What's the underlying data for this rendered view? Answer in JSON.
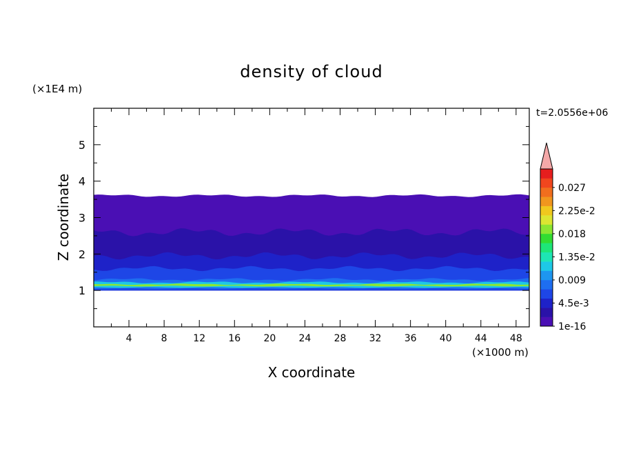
{
  "chart_data": {
    "type": "heatmap",
    "title": "density of cloud",
    "xlabel": "X coordinate",
    "ylabel": "Z coordinate",
    "x_unit": "(×1000 m)",
    "y_unit": "(×1E4 m)",
    "time_label": "t=2.0556e+06",
    "xlim": [
      0,
      49.5
    ],
    "ylim": [
      0,
      6
    ],
    "x_ticks": [
      "4",
      "8",
      "12",
      "16",
      "20",
      "24",
      "28",
      "32",
      "36",
      "40",
      "44",
      "48"
    ],
    "x_tick_values": [
      4,
      8,
      12,
      16,
      20,
      24,
      28,
      32,
      36,
      40,
      44,
      48
    ],
    "y_ticks": [
      "1",
      "2",
      "3",
      "4",
      "5"
    ],
    "y_tick_values": [
      1,
      2,
      3,
      4,
      5
    ],
    "colorbar": {
      "labels": [
        "1e-16",
        "4.5e-3",
        "0.009",
        "1.35e-2",
        "0.018",
        "2.25e-2",
        "0.027"
      ],
      "label_values": [
        0,
        0.0045,
        0.009,
        0.0135,
        0.018,
        0.0225,
        0.027
      ],
      "colors": [
        "#4a0fb4",
        "#2a12a8",
        "#1e22c8",
        "#1e46e6",
        "#1e6ef0",
        "#1e96f0",
        "#1ec8e6",
        "#1ee6b4",
        "#1ee678",
        "#32dc32",
        "#8ce632",
        "#dce632",
        "#f0c81e",
        "#f0961e",
        "#f06e1e",
        "#f0461e",
        "#e61e1e"
      ],
      "overflow_color": "#f4a8a8"
    },
    "cloud_layers": [
      {
        "z_bottom": 1.0,
        "z_top": 3.6,
        "value": 0.0,
        "color": "#4a0fb4"
      },
      {
        "z_bottom": 1.0,
        "z_top": 2.6,
        "value": 0.0015,
        "color": "#2a12a8"
      },
      {
        "z_bottom": 1.0,
        "z_top": 1.95,
        "value": 0.003,
        "color": "#1e22c8"
      },
      {
        "z_bottom": 1.0,
        "z_top": 1.6,
        "value": 0.006,
        "color": "#1e46e6"
      },
      {
        "z_bottom": 1.05,
        "z_top": 1.3,
        "value": 0.009,
        "color": "#1e6ef0"
      },
      {
        "z_bottom": 1.08,
        "z_top": 1.22,
        "value": 0.012,
        "color": "#1ec8e6"
      },
      {
        "z_bottom": 1.12,
        "z_top": 1.17,
        "value": 0.016,
        "color": "#8ce632"
      }
    ]
  }
}
